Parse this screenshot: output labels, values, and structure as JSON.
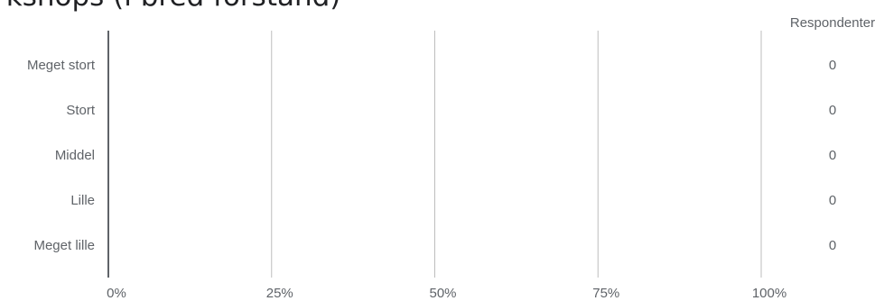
{
  "page_title": "rkshops (i bred forstand)",
  "chart_data": {
    "type": "bar",
    "orientation": "horizontal",
    "categories": [
      "Meget stort",
      "Stort",
      "Middel",
      "Lille",
      "Meget lille"
    ],
    "values": [
      0,
      0,
      0,
      0,
      0
    ],
    "respondents_header": "Respondenter",
    "respondents": [
      "0",
      "0",
      "0",
      "0",
      "0"
    ],
    "x_ticks": [
      "0%",
      "25%",
      "50%",
      "75%",
      "100%"
    ],
    "xlim": [
      0,
      100
    ],
    "grid": true,
    "colors": {
      "grid": "#bdbdbd",
      "axis": "#5f6368",
      "text": "#5f6368"
    }
  }
}
